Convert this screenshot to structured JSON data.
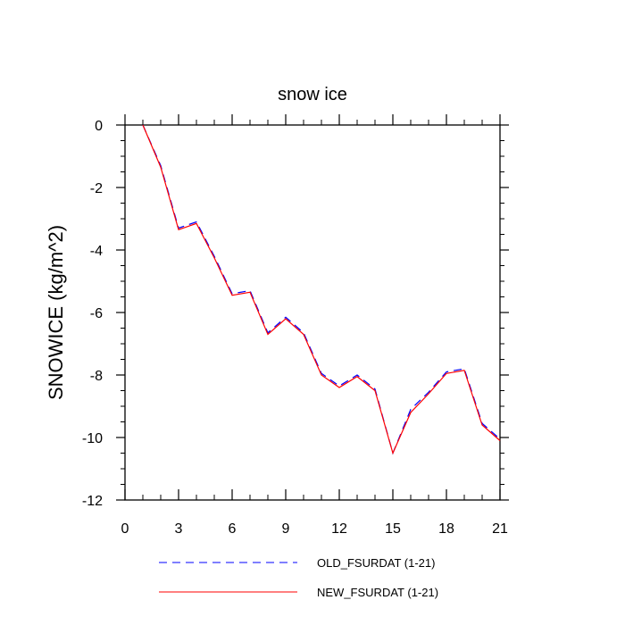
{
  "chart_data": {
    "type": "line",
    "title": "snow ice",
    "xlabel": "",
    "ylabel": "SNOWICE  (kg/m^2)",
    "xlim": [
      0,
      21
    ],
    "ylim": [
      -12,
      0
    ],
    "xticks": [
      0,
      3,
      6,
      9,
      12,
      15,
      18,
      21
    ],
    "yticks": [
      0,
      -2,
      -4,
      -6,
      -8,
      -10,
      -12
    ],
    "legend_position": "bottom",
    "series": [
      {
        "name": "OLD_FSURDAT (1-21)",
        "color": "#0000ff",
        "style": "dashed",
        "x": [
          1,
          2,
          3,
          4,
          5,
          6,
          7,
          8,
          9,
          10,
          11,
          12,
          13,
          14,
          15,
          16,
          17,
          18,
          19,
          20,
          21
        ],
        "y": [
          0,
          -1.3,
          -3.3,
          -3.1,
          -4.2,
          -5.4,
          -5.3,
          -6.65,
          -6.15,
          -6.65,
          -7.95,
          -8.35,
          -8.0,
          -8.45,
          -10.5,
          -9.1,
          -8.55,
          -7.9,
          -7.8,
          -9.55,
          -10.05
        ]
      },
      {
        "name": "NEW_FSURDAT (1-21)",
        "color": "#ff0000",
        "style": "solid",
        "x": [
          1,
          2,
          3,
          4,
          5,
          6,
          7,
          8,
          9,
          10,
          11,
          12,
          13,
          14,
          15,
          16,
          17,
          18,
          19,
          20,
          21
        ],
        "y": [
          0,
          -1.35,
          -3.35,
          -3.15,
          -4.25,
          -5.45,
          -5.35,
          -6.7,
          -6.2,
          -6.7,
          -8.0,
          -8.4,
          -8.05,
          -8.5,
          -10.5,
          -9.2,
          -8.6,
          -7.95,
          -7.85,
          -9.6,
          -10.1
        ]
      }
    ]
  }
}
